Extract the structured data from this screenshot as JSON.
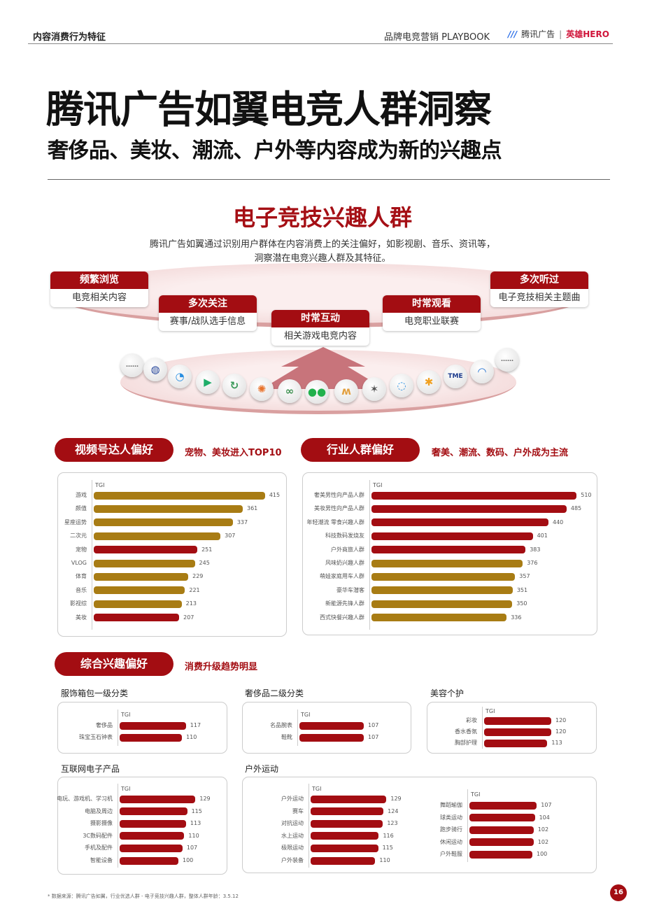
{
  "header": {
    "section": "内容消费行为特征",
    "book": "品牌电竞营销 PLAYBOOK",
    "brand": "腾讯广告",
    "partner": "英雄HERO"
  },
  "title": "腾讯广告如翼电竞人群洞察",
  "subtitle": "奢侈品、美妆、潮流、户外等内容成为新的兴趣点",
  "insight": {
    "heading": "电子竞技兴趣人群",
    "desc_line1": "腾讯广告如翼通过识别用户群体在内容消费上的关注偏好，如影视剧、音乐、资讯等，",
    "desc_line2": "洞察潜在电竞兴趣人群及其特征。",
    "cards": [
      {
        "title": "频繁浏览",
        "body": "电竞相关内容"
      },
      {
        "title": "多次关注",
        "body": "赛事/战队选手信息"
      },
      {
        "title": "时常互动",
        "body": "相关游戏电竞内容"
      },
      {
        "title": "时常观看",
        "body": "电竞职业联赛"
      },
      {
        "title": "多次听过",
        "body": "电子竞技相关主题曲"
      }
    ],
    "apps": [
      "more-icon",
      "globe-app-icon",
      "tencent-video-icon",
      "play-app-icon",
      "sync-app-icon",
      "camera-app-icon",
      "mini-program-icon",
      "wechat-icon",
      "butterfly-app-icon",
      "star-app-icon",
      "chat-app-icon",
      "sparkle-app-icon",
      "tme-icon",
      "browser-app-icon",
      "more-icon"
    ],
    "more_label": "……"
  },
  "sections": {
    "video": {
      "pill": "视频号达人偏好",
      "tag": "宠物、美妆进入TOP10"
    },
    "industry": {
      "pill": "行业人群偏好",
      "tag": "奢美、潮流、数码、户外成为主流"
    },
    "overall": {
      "pill": "综合兴趣偏好",
      "tag": "消费升级趋势明显"
    }
  },
  "colors": {
    "red": "#a30d12",
    "gold": "#a87c14",
    "pink": "#f6dede"
  },
  "chart_data": [
    {
      "id": "video",
      "type": "bar",
      "orientation": "horizontal",
      "xlabel": "TGI",
      "categories": [
        "游戏",
        "颜值",
        "星座运势",
        "二次元",
        "宠物",
        "VLOG",
        "体育",
        "音乐",
        "影视综",
        "美妆"
      ],
      "values": [
        415,
        361,
        337,
        307,
        251,
        245,
        229,
        221,
        213,
        207
      ],
      "colors": [
        "#a87c14",
        "#a87c14",
        "#a87c14",
        "#a87c14",
        "#a30d12",
        "#a87c14",
        "#a87c14",
        "#a87c14",
        "#a87c14",
        "#a30d12"
      ]
    },
    {
      "id": "industry",
      "type": "bar",
      "orientation": "horizontal",
      "xlabel": "TGI",
      "categories": [
        "奢美男性向产品人群",
        "美妆男性向产品人群",
        "年轻潮流 零食兴趣人群",
        "科技数码发烧友",
        "户外商旅人群",
        "风味奶兴趣人群",
        "萌娃家庭用车人群",
        "豪华车潜客",
        "新能源先锋人群",
        "西式快餐兴趣人群"
      ],
      "values": [
        510,
        485,
        440,
        401,
        383,
        376,
        357,
        351,
        350,
        336
      ],
      "colors": [
        "#a30d12",
        "#a30d12",
        "#a30d12",
        "#a30d12",
        "#a30d12",
        "#a87c14",
        "#a87c14",
        "#a87c14",
        "#a87c14",
        "#a87c14"
      ]
    },
    {
      "id": "apparel",
      "type": "bar",
      "title": "服饰箱包一级分类",
      "xlabel": "TGI",
      "categories": [
        "奢侈品",
        "珠宝玉石钟表"
      ],
      "values": [
        117,
        110
      ]
    },
    {
      "id": "luxury",
      "type": "bar",
      "title": "奢侈品二级分类",
      "xlabel": "TGI",
      "categories": [
        "名品腕表",
        "鞋靴"
      ],
      "values": [
        107,
        107
      ]
    },
    {
      "id": "beauty",
      "type": "bar",
      "title": "美容个护",
      "xlabel": "TGI",
      "categories": [
        "彩妆",
        "香水香氛",
        "胸部护理"
      ],
      "values": [
        120,
        120,
        113
      ]
    },
    {
      "id": "electronics",
      "type": "bar",
      "title": "互联网电子产品",
      "xlabel": "TGI",
      "categories": [
        "电玩、游戏机、学习机",
        "电脑及周边",
        "摄影摄像",
        "3C数码配件",
        "手机及配件",
        "智能设备"
      ],
      "values": [
        129,
        115,
        113,
        110,
        107,
        100
      ]
    },
    {
      "id": "outdoor_a",
      "type": "bar",
      "title": "户外运动",
      "xlabel": "TGI",
      "categories": [
        "户外运动",
        "赛车",
        "对抗运动",
        "水上运动",
        "极限运动",
        "户外装备"
      ],
      "values": [
        129,
        124,
        123,
        116,
        115,
        110
      ]
    },
    {
      "id": "outdoor_b",
      "type": "bar",
      "xlabel": "TGI",
      "categories": [
        "舞蹈瑜伽",
        "球类运动",
        "跑步骑行",
        "休闲运动",
        "户外鞋服"
      ],
      "values": [
        107,
        104,
        102,
        102,
        100
      ]
    }
  ],
  "footnote": "* 数据来源：腾讯广告如翼，行业优选人群 - 电子竞技兴趣人群，整体人群年龄：3.5.12",
  "page_number": "16"
}
